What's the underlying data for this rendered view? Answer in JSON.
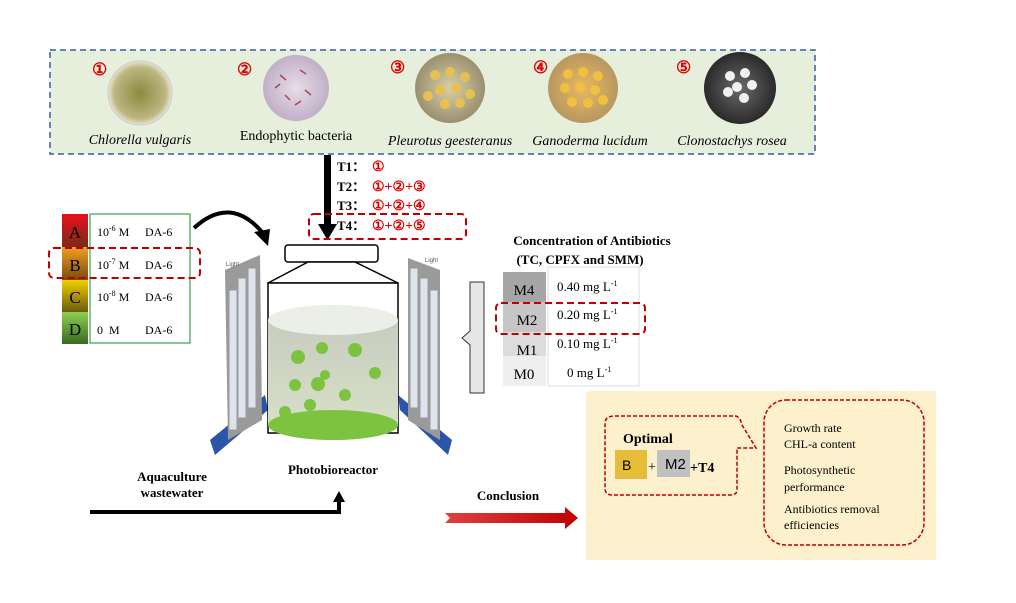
{
  "organisms": [
    {
      "num": "①",
      "name": "Chlorella vulgaris",
      "italic": true
    },
    {
      "num": "②",
      "name": "Endophytic bacteria",
      "italic": false
    },
    {
      "num": "③",
      "name": "Pleurotus geesteranus",
      "italic": true
    },
    {
      "num": "④",
      "name": "Ganoderma lucidum",
      "italic": true
    },
    {
      "num": "⑤",
      "name": "Clonostachys rosea",
      "italic": true
    }
  ],
  "treatments": [
    {
      "label": "T1：",
      "combo": "①"
    },
    {
      "label": "T2：",
      "combo": "①+②+③"
    },
    {
      "label": "T3：",
      "combo": "①+②+④"
    },
    {
      "label": "T4：",
      "combo": "①+②+⑤"
    }
  ],
  "hormone": [
    {
      "level": "A",
      "base": "10",
      "exp": "-6",
      "unit": " M",
      "agent": "DA-6"
    },
    {
      "level": "B",
      "base": "10",
      "exp": "-7",
      "unit": " M",
      "agent": "DA-6"
    },
    {
      "level": "C",
      "base": "10",
      "exp": "-8",
      "unit": " M",
      "agent": "DA-6"
    },
    {
      "level": "D",
      "base": "0",
      "exp": "",
      "unit": "  M",
      "agent": "DA-6"
    }
  ],
  "light_label": "Light",
  "reactor_label": "Photobioreactor",
  "antibiotics": {
    "title1": "Concentration of Antibiotics",
    "title2": "(TC, CPFX and SMM)",
    "rows": [
      {
        "level": "M4",
        "value": "0.40 mg L",
        "exp": "-1"
      },
      {
        "level": "M2",
        "value": "0.20 mg L",
        "exp": "-1"
      },
      {
        "level": "M1",
        "value": "0.10 mg L",
        "exp": "-1"
      },
      {
        "level": "M0",
        "value": "0 mg L",
        "exp": "-1"
      }
    ]
  },
  "wastewater_label1": "Aquaculture",
  "wastewater_label2": "wastewater",
  "conclusion_label": "Conclusion",
  "optimal": {
    "title": "Optimal",
    "b": "B",
    "plus": "+",
    "m": "M2",
    "t": "+T4"
  },
  "outcomes": [
    "Growth rate",
    "CHL-a content",
    "Photosynthetic",
    "performance",
    "Antibiotics removal",
    "efficiencies"
  ],
  "colors": {
    "accent_red": "#c00000",
    "panel_green": "#e5efdb",
    "panel_yellow": "#fdf0cc",
    "dash_blue": "#3a5ba8"
  }
}
